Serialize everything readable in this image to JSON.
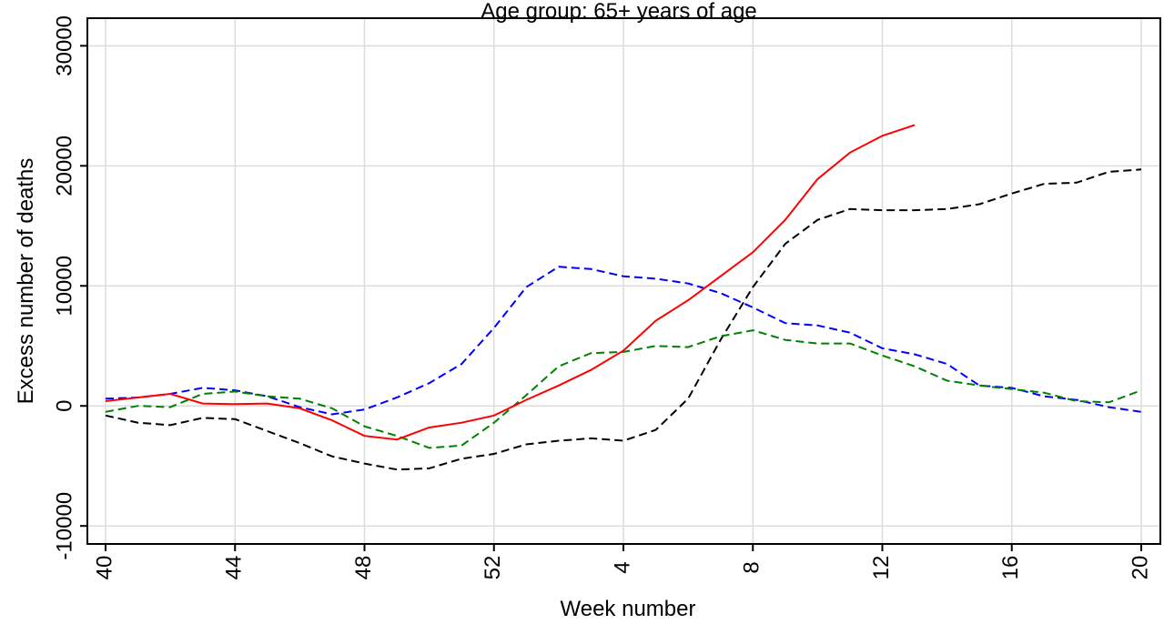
{
  "chart_data": {
    "type": "line",
    "title": "Age group: 65+ years of age",
    "x_label": "Week number",
    "y_label": "Excess number of deaths",
    "categories": [
      "40",
      null,
      null,
      null,
      "44",
      null,
      null,
      null,
      "48",
      null,
      null,
      null,
      "52",
      null,
      null,
      null,
      "4",
      null,
      null,
      null,
      "8",
      null,
      null,
      null,
      "12",
      null,
      null,
      null,
      "16",
      null,
      null,
      null,
      "20"
    ],
    "ylim": [
      -11500,
      32300
    ],
    "yticks": [
      -10000,
      0,
      10000,
      20000,
      30000
    ],
    "grid": true,
    "series": [
      {
        "color": "#000000",
        "style": "dashed",
        "values": [
          -800,
          -1400,
          -1600,
          -1000,
          -1100,
          -2100,
          -3100,
          -4200,
          -4800,
          -5300,
          -5200,
          -4400,
          -4000,
          -3200,
          -2900,
          -2700,
          -2900,
          -2000,
          600,
          5500,
          9900,
          13500,
          15500,
          16400,
          16300,
          16300,
          16400,
          16800,
          17700,
          18500,
          18600,
          19500,
          19700
        ]
      },
      {
        "color": "#0000ff",
        "style": "dashed",
        "values": [
          600,
          700,
          1000,
          1500,
          1300,
          800,
          -100,
          -700,
          -300,
          700,
          1900,
          3500,
          6500,
          9900,
          11600,
          11400,
          10800,
          10600,
          10200,
          9400,
          8200,
          6900,
          6700,
          6100,
          4800,
          4300,
          3500,
          1700,
          1500,
          800,
          500,
          -100,
          -500
        ]
      },
      {
        "color": "#008000",
        "style": "dashed",
        "values": [
          -500,
          0,
          -100,
          1000,
          1200,
          800,
          600,
          -200,
          -1700,
          -2500,
          -3500,
          -3300,
          -1400,
          900,
          3300,
          4400,
          4500,
          5000,
          4900,
          5800,
          6300,
          5500,
          5200,
          5200,
          4200,
          3300,
          2100,
          1700,
          1400,
          1100,
          400,
          300,
          1300
        ]
      },
      {
        "color": "#ff0000",
        "style": "solid",
        "values": [
          400,
          700,
          1000,
          200,
          150,
          200,
          -200,
          -1200,
          -2500,
          -2800,
          -1800,
          -1400,
          -800,
          500,
          1700,
          3000,
          4600,
          7100,
          8800,
          10800,
          12800,
          15500,
          18900,
          21100,
          22500,
          23400,
          null,
          null,
          null,
          null,
          null,
          null,
          null
        ]
      }
    ]
  }
}
